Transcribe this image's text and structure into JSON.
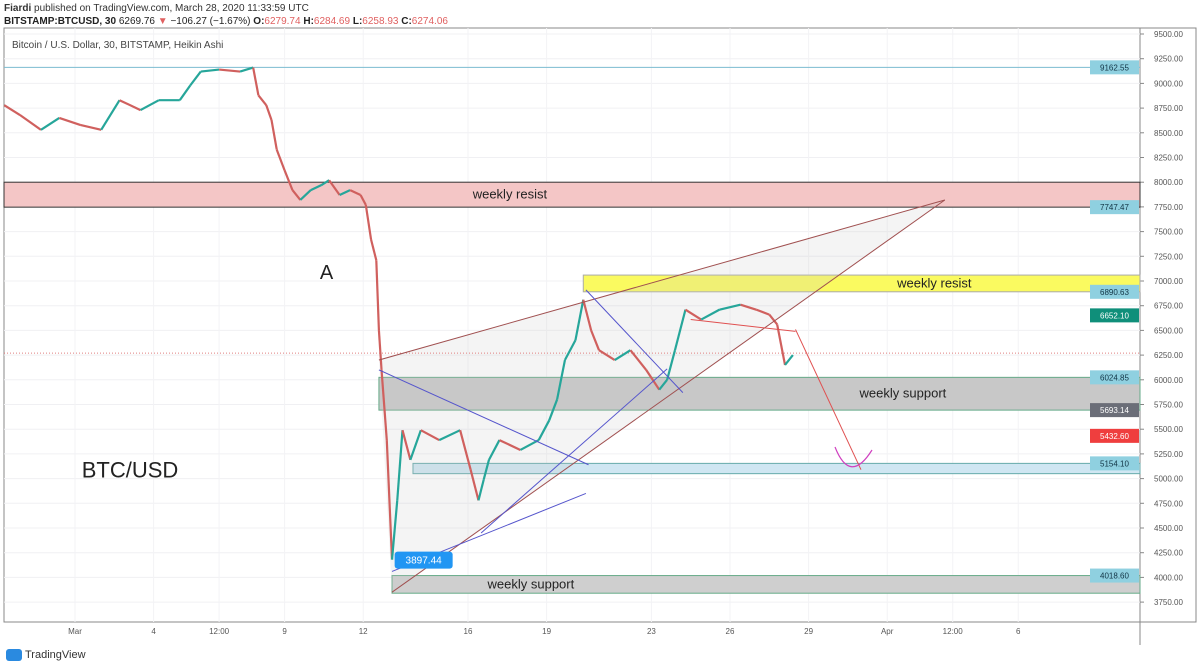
{
  "header": {
    "author": "Fiardi",
    "published": "published on TradingView.com, March 28, 2020 11:33:59 UTC",
    "symbol": "BITSTAMP:BTCUSD, 30",
    "last": "6269.76",
    "change": "−106.27 (−1.67%)",
    "o_label": "O:",
    "o": "6279.74",
    "h_label": "H:",
    "h": "6284.69",
    "l_label": "L:",
    "l": "6258.93",
    "c_label": "C:",
    "c": "6274.06"
  },
  "footer": {
    "brand": "TradingView"
  },
  "chart_data": {
    "type": "line",
    "title": "Bitcoin / U.S. Dollar, 30, BITSTAMP, Heikin Ashi",
    "x_unit": "day of March 2020",
    "ylim": [
      3650,
      9550
    ],
    "xlim": [
      -1.9,
      42.3
    ],
    "y_ticks": [
      "9500.00",
      "9250.00",
      "9000.00",
      "8750.00",
      "8500.00",
      "8250.00",
      "8000.00",
      "7750.00",
      "7500.00",
      "7250.00",
      "7000.00",
      "6750.00",
      "6500.00",
      "6250.00",
      "6000.00",
      "5750.00",
      "5500.00",
      "5250.00",
      "5000.00",
      "4750.00",
      "4500.00",
      "4250.00",
      "4000.00",
      "3750.00"
    ],
    "x_ticks": [
      {
        "day": 1,
        "label": "Mar"
      },
      {
        "day": 4,
        "label": "4"
      },
      {
        "day": 6.5,
        "label": "12:00"
      },
      {
        "day": 9,
        "label": "9"
      },
      {
        "day": 12,
        "label": "12"
      },
      {
        "day": 16,
        "label": "16"
      },
      {
        "day": 19,
        "label": "19"
      },
      {
        "day": 23,
        "label": "23"
      },
      {
        "day": 26,
        "label": "26"
      },
      {
        "day": 29,
        "label": "29"
      },
      {
        "day": 32,
        "label": "Apr"
      },
      {
        "day": 34.5,
        "label": "12:00"
      },
      {
        "day": 37,
        "label": "6"
      }
    ],
    "series": [
      {
        "x": [
          -1.7,
          -1.1,
          -0.3,
          0.4,
          1.2,
          2.0,
          2.7,
          3.5,
          4.2,
          5.0,
          5.4,
          5.8,
          6.5,
          7.3,
          7.8,
          8.0,
          8.3,
          8.5,
          8.7,
          9.0,
          9.3,
          9.6,
          10.0,
          10.4,
          10.7,
          11.1,
          11.5,
          11.9,
          12.1,
          12.3,
          12.5,
          12.6,
          12.7,
          12.9,
          13.1,
          13.3,
          13.5,
          13.8,
          14.2,
          14.9,
          15.7,
          16.1,
          16.4,
          16.6,
          16.8,
          17.2,
          18.0,
          18.7,
          19.1,
          19.4,
          19.7,
          20.1,
          20.4,
          20.7,
          21.0,
          21.6,
          22.2,
          22.8,
          23.3,
          23.6,
          23.9,
          24.3,
          24.9,
          25.6,
          26.4,
          27.0,
          27.5,
          27.8,
          28.1,
          28.4
        ],
        "y": [
          8780,
          8680,
          8530,
          8650,
          8580,
          8530,
          8830,
          8730,
          8830,
          8830,
          8980,
          9120,
          9140,
          9120,
          9160,
          8880,
          8780,
          8630,
          8330,
          8120,
          7920,
          7820,
          7920,
          7970,
          8020,
          7870,
          7920,
          7870,
          7770,
          7420,
          7210,
          6500,
          6100,
          5390,
          4180,
          4780,
          5490,
          5190,
          5490,
          5390,
          5490,
          5090,
          4780,
          4990,
          5190,
          5390,
          5290,
          5390,
          5590,
          5800,
          6200,
          6400,
          6810,
          6500,
          6300,
          6200,
          6300,
          6100,
          5900,
          6000,
          6300,
          6710,
          6610,
          6710,
          6760,
          6710,
          6660,
          6560,
          6150,
          6250
        ]
      }
    ],
    "current_price": 6269.76,
    "price_labels": [
      {
        "value": "9162.55",
        "price": 9162.55,
        "color": "#8fd0e0"
      },
      {
        "value": "7747.47",
        "price": 7747.47,
        "color": "#8fd0e0"
      },
      {
        "value": "6890.63",
        "price": 6890.63,
        "color": "#8fd0e0"
      },
      {
        "value": "6652.10",
        "price": 6652.1,
        "color": "#0f8f7a"
      },
      {
        "value": "6024.85",
        "price": 6024.85,
        "color": "#8fd0e0"
      },
      {
        "value": "5693.14",
        "price": 5693.14,
        "color": "#6b6e78"
      },
      {
        "value": "5432.60",
        "price": 5432.6,
        "color": "#ef3e3e"
      },
      {
        "value": "5154.10",
        "price": 5154.1,
        "color": "#8fd0e0"
      },
      {
        "value": "4018.60",
        "price": 4018.6,
        "color": "#8fd0e0"
      }
    ],
    "zones": [
      {
        "label": "weekly resist",
        "from": -2,
        "top": 8000,
        "bottom": 7747.47,
        "fill": "#f4c6c6",
        "stroke": "#333",
        "label_day": 17.6
      },
      {
        "label": "weekly resist",
        "from": 20.4,
        "top": 7060,
        "bottom": 6890.63,
        "fill": "#fafa60",
        "stroke": "#aaa",
        "label_day": 33.8
      },
      {
        "label": "weekly support",
        "from": 12.6,
        "top": 6024.85,
        "bottom": 5693.14,
        "fill": "#c8c8c8",
        "stroke": "#6a8",
        "label_day": 32.6
      },
      {
        "label": "",
        "from": 13.9,
        "top": 5154.1,
        "bottom": 5050,
        "fill": "#cfe6f2",
        "stroke": "#6aa",
        "label_day": 0
      },
      {
        "label": "weekly support",
        "from": 13.1,
        "top": 4018.6,
        "bottom": 3840,
        "fill": "#cfcfcf",
        "stroke": "#6a8",
        "label_day": 18.4
      }
    ],
    "trendlines": [
      {
        "color": "#a05050",
        "p": [
          [
            12.6,
            6200
          ],
          [
            34.2,
            7820
          ]
        ]
      },
      {
        "color": "#a05050",
        "p": [
          [
            13.1,
            3850
          ],
          [
            34.2,
            7820
          ]
        ]
      },
      {
        "color": "#5555cc",
        "p": [
          [
            12.6,
            6100
          ],
          [
            20.6,
            5140
          ]
        ]
      },
      {
        "color": "#5555cc",
        "p": [
          [
            13.1,
            4060
          ],
          [
            20.5,
            4850
          ]
        ]
      },
      {
        "color": "#5555cc",
        "p": [
          [
            20.5,
            6910
          ],
          [
            24.2,
            5870
          ]
        ]
      },
      {
        "color": "#5555cc",
        "p": [
          [
            16.5,
            4450
          ],
          [
            23.6,
            6110
          ]
        ]
      },
      {
        "color": "#e05050",
        "p": [
          [
            24.5,
            6610
          ],
          [
            28.5,
            6490
          ]
        ]
      },
      {
        "color": "#e05050",
        "p": [
          [
            28.5,
            6510
          ],
          [
            31.0,
            5090
          ]
        ]
      }
    ],
    "annotations": [
      {
        "text": "A",
        "day": 10.6,
        "price": 7020
      },
      {
        "text": "BTC/USD",
        "day": 3.1,
        "price": 5010
      }
    ],
    "low_label": {
      "text": "3897.44",
      "day": 13.2,
      "price": 4180
    }
  }
}
